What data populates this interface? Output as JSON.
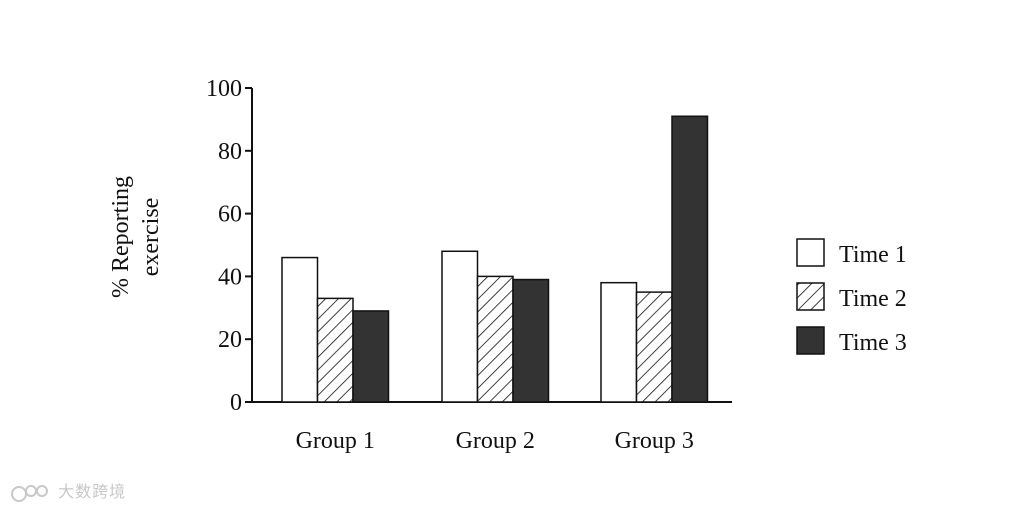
{
  "chart_data": {
    "type": "bar",
    "categories": [
      "Group 1",
      "Group 2",
      "Group 3"
    ],
    "series": [
      {
        "name": "Time 1",
        "values": [
          46,
          48,
          38
        ],
        "pattern": "white"
      },
      {
        "name": "Time 2",
        "values": [
          33,
          40,
          35
        ],
        "pattern": "hatch"
      },
      {
        "name": "Time 3",
        "values": [
          29,
          39,
          91
        ],
        "pattern": "dark"
      }
    ],
    "ylabel_line1": "% Reporting",
    "ylabel_line2": "exercise",
    "ylim": [
      0,
      100
    ],
    "yticks": [
      0,
      20,
      40,
      60,
      80,
      100
    ],
    "legend_position": "right",
    "colors": {
      "outline": "#111111",
      "dark_fill": "#333333",
      "white_fill": "#ffffff"
    }
  },
  "watermark": {
    "text": "大数跨境",
    "icon": "watermark-logo-icon"
  }
}
